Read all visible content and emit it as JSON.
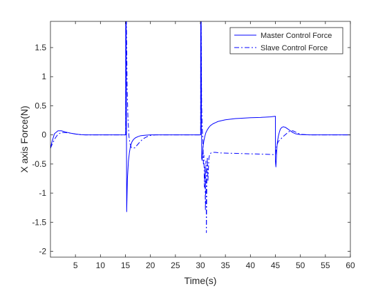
{
  "chart_data": {
    "type": "line",
    "title": "",
    "xlabel": "Time(s)",
    "ylabel": "X axis Force(N)",
    "xlim": [
      0,
      60
    ],
    "ylim": [
      -2.1,
      1.95
    ],
    "xticks": [
      5,
      10,
      15,
      20,
      25,
      30,
      35,
      40,
      45,
      50,
      55,
      60
    ],
    "yticks": [
      -2,
      -1.5,
      -1,
      -0.5,
      0,
      0.5,
      1,
      1.5
    ],
    "ytick_labels": [
      "-2",
      "-1.5",
      "-1",
      "-0.5",
      "0",
      "0.5",
      "1",
      "1.5"
    ],
    "grid": false,
    "legend_position": "top-right",
    "series": [
      {
        "name": "Master Control Force",
        "color": "#0000ff",
        "style": "solid",
        "x": [
          0,
          0.3,
          0.8,
          1.5,
          2.2,
          3.0,
          4.0,
          5.0,
          6.0,
          7.0,
          8.0,
          9.0,
          10.0,
          12.0,
          14.0,
          15.0,
          15.05,
          15.06,
          15.15,
          15.25,
          15.4,
          15.6,
          15.8,
          16.0,
          16.3,
          16.6,
          17.0,
          17.5,
          18.0,
          19.0,
          20.0,
          22.0,
          25.0,
          28.0,
          30.0,
          30.05,
          30.06,
          30.15,
          30.25,
          30.35,
          30.5,
          30.7,
          30.9,
          31.1,
          31.4,
          31.7,
          32.0,
          32.5,
          33.0,
          33.5,
          34.0,
          35.0,
          36.0,
          37.0,
          38.0,
          40.0,
          42.0,
          44.0,
          45.0,
          45.01,
          45.1,
          45.2,
          45.3,
          45.4,
          45.6,
          45.8,
          46.0,
          46.3,
          46.6,
          47.0,
          47.5,
          48.0,
          48.5,
          49.0,
          50.0,
          52.0,
          55.0,
          60.0
        ],
        "y": [
          -0.23,
          -0.12,
          0.02,
          0.07,
          0.07,
          0.05,
          0.03,
          0.015,
          0.005,
          0,
          0,
          0,
          0,
          0,
          0,
          0,
          0,
          1.95,
          1.95,
          -1.32,
          -0.75,
          -0.45,
          -0.3,
          -0.2,
          -0.12,
          -0.08,
          -0.05,
          -0.03,
          -0.015,
          -0.005,
          0,
          0,
          0,
          0,
          0,
          0,
          1.95,
          1.95,
          -0.4,
          -0.44,
          -0.22,
          -0.1,
          -0.02,
          0.04,
          0.09,
          0.13,
          0.16,
          0.19,
          0.21,
          0.23,
          0.24,
          0.26,
          0.27,
          0.28,
          0.285,
          0.295,
          0.3,
          0.31,
          0.32,
          -0.45,
          -0.55,
          -0.4,
          -0.22,
          -0.12,
          -0.02,
          0.05,
          0.1,
          0.13,
          0.14,
          0.13,
          0.1,
          0.07,
          0.04,
          0.02,
          0.005,
          0,
          0,
          0
        ]
      },
      {
        "name": "Slave Control Force",
        "color": "#0000ff",
        "style": "dashdot",
        "x": [
          0,
          0.4,
          1.0,
          1.5,
          2.2,
          3.0,
          4.0,
          5.0,
          6.0,
          7.0,
          8.0,
          10.0,
          12.0,
          14.0,
          15.0,
          15.05,
          15.06,
          15.2,
          15.35,
          15.5,
          15.7,
          15.9,
          16.2,
          16.5,
          16.9,
          17.3,
          17.7,
          18.0,
          18.5,
          19.0,
          19.5,
          20.0,
          21.0,
          22.0,
          25.0,
          28.0,
          30.0,
          30.05,
          30.06,
          30.15,
          30.25,
          30.35,
          30.5,
          30.6,
          30.7,
          30.8,
          30.9,
          31.0,
          31.1,
          31.2,
          31.3,
          31.4,
          31.5,
          31.7,
          31.9,
          32.2,
          32.5,
          33.0,
          34.0,
          36.0,
          38.0,
          40.0,
          42.0,
          44.0,
          45.0,
          45.02,
          45.15,
          45.3,
          45.5,
          45.7,
          46.0,
          46.4,
          46.8,
          47.2,
          47.6,
          48.0,
          48.5,
          49.0,
          49.5,
          50.0,
          52.0,
          55.0,
          60.0
        ],
        "y": [
          -0.23,
          -0.15,
          -0.05,
          0.01,
          0.04,
          0.04,
          0.03,
          0.015,
          0.005,
          0,
          0,
          0,
          0,
          0,
          0,
          0,
          1.95,
          1.95,
          0.8,
          0.3,
          -0.02,
          -0.15,
          -0.22,
          -0.23,
          -0.22,
          -0.18,
          -0.14,
          -0.11,
          -0.07,
          -0.045,
          -0.025,
          -0.01,
          0,
          0,
          0,
          0,
          0,
          0,
          1.95,
          1.95,
          0.5,
          0.15,
          -0.1,
          -0.5,
          -0.35,
          -0.9,
          -0.55,
          -1.3,
          -0.45,
          -1.68,
          -0.6,
          -0.38,
          -0.8,
          -0.4,
          -0.32,
          -0.31,
          -0.3,
          -0.3,
          -0.31,
          -0.315,
          -0.32,
          -0.325,
          -0.33,
          -0.335,
          -0.34,
          -0.34,
          -0.25,
          -0.18,
          -0.13,
          -0.1,
          -0.08,
          -0.04,
          -0.01,
          0.02,
          0.05,
          0.07,
          0.07,
          0.05,
          0.03,
          0.01,
          0,
          0,
          0
        ]
      }
    ]
  }
}
